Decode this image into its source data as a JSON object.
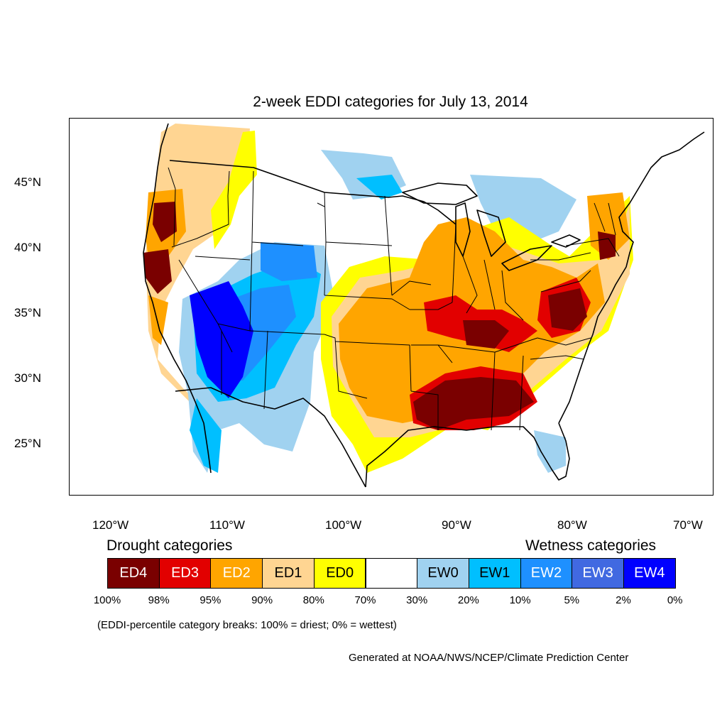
{
  "title": "2-week EDDI categories for July 13, 2014",
  "lat_labels": [
    "45°N",
    "40°N",
    "35°N",
    "30°N",
    "25°N"
  ],
  "lon_labels": [
    "120°W",
    "110°W",
    "100°W",
    "90°W",
    "80°W",
    "70°W"
  ],
  "legend": {
    "drought_heading": "Drought categories",
    "wetness_heading": "Wetness categories",
    "categories": [
      {
        "label": "ED4",
        "color": "#7a0000",
        "text_color": "#ffffff"
      },
      {
        "label": "ED3",
        "color": "#e20000",
        "text_color": "#ffffff"
      },
      {
        "label": "ED2",
        "color": "#ffa500",
        "text_color": "#ffffff"
      },
      {
        "label": "ED1",
        "color": "#ffd592",
        "text_color": "#000000"
      },
      {
        "label": "ED0",
        "color": "#ffff00",
        "text_color": "#000000"
      },
      {
        "label": "",
        "color": "#ffffff",
        "text_color": "#000000"
      },
      {
        "label": "EW0",
        "color": "#a0d2f0",
        "text_color": "#000000"
      },
      {
        "label": "EW1",
        "color": "#00bfff",
        "text_color": "#000000"
      },
      {
        "label": "EW2",
        "color": "#1e90ff",
        "text_color": "#ffffff"
      },
      {
        "label": "EW3",
        "color": "#4169e1",
        "text_color": "#ffffff"
      },
      {
        "label": "EW4",
        "color": "#0000ff",
        "text_color": "#ffffff"
      }
    ],
    "percentiles": [
      "100%",
      "98%",
      "95%",
      "90%",
      "80%",
      "70%",
      "30%",
      "20%",
      "10%",
      "5%",
      "2%",
      "0%"
    ]
  },
  "note": "(EDDI-percentile category breaks: 100% = driest; 0% = wettest)",
  "credit": "Generated at NOAA/NWS/NCEP/Climate Prediction Center"
}
